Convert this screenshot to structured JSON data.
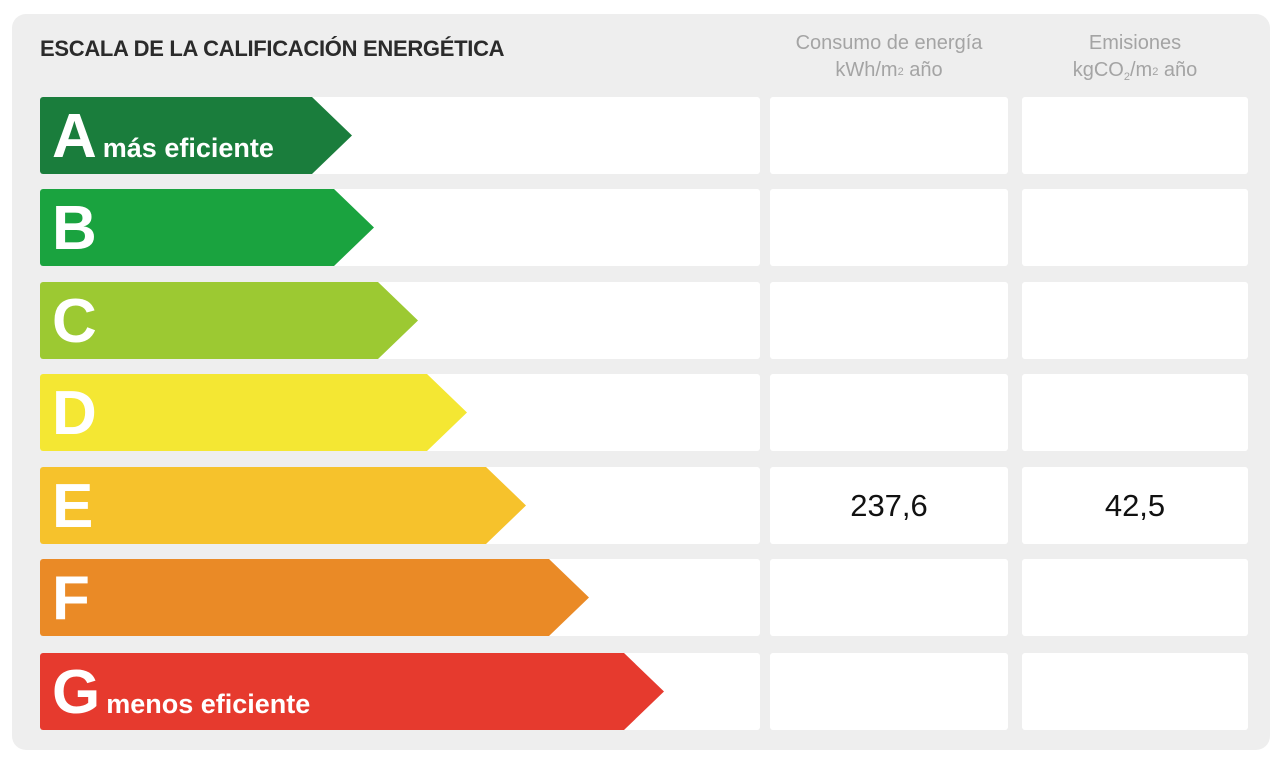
{
  "title": "ESCALA DE LA CALIFICACIÓN ENERGÉTICA",
  "columns": {
    "consumo": {
      "line1": "Consumo de energía",
      "unit_pre": "kWh/m",
      "unit_sup": "2",
      "unit_post": " año"
    },
    "emisiones": {
      "line1": "Emisiones",
      "unit_pre": "kgCO",
      "unit_sub": "2",
      "unit_mid": "/m",
      "unit_sup": "2",
      "unit_post": " año"
    }
  },
  "ratings": [
    {
      "letter": "A",
      "sublabel": "más eficiente",
      "color": "#1a7d3c",
      "consumo": "",
      "emisiones": ""
    },
    {
      "letter": "B",
      "sublabel": "",
      "color": "#1aa33f",
      "consumo": "",
      "emisiones": ""
    },
    {
      "letter": "C",
      "sublabel": "",
      "color": "#9cc932",
      "consumo": "",
      "emisiones": ""
    },
    {
      "letter": "D",
      "sublabel": "",
      "color": "#f4e733",
      "consumo": "",
      "emisiones": ""
    },
    {
      "letter": "E",
      "sublabel": "",
      "color": "#f6c22c",
      "consumo": "237,6",
      "emisiones": "42,5"
    },
    {
      "letter": "F",
      "sublabel": "",
      "color": "#ea8a26",
      "consumo": "",
      "emisiones": ""
    },
    {
      "letter": "G",
      "sublabel": "menos eficiente",
      "color": "#e63a2e",
      "consumo": "",
      "emisiones": ""
    }
  ]
}
